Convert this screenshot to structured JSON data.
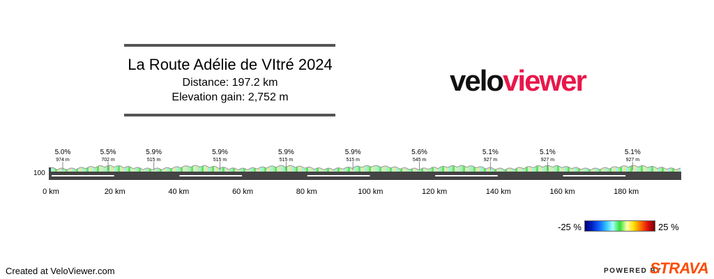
{
  "header": {
    "title": "La Route Adélie de VItré 2024",
    "distance": "Distance: 197.2 km",
    "elevation_gain": "Elevation gain: 2,752 m"
  },
  "logo": {
    "part1": "velo",
    "part2": "viewer"
  },
  "profile": {
    "y_label": "100",
    "total_km": 197.2,
    "x_ticks": [
      "0 km",
      "20 km",
      "40 km",
      "60 km",
      "80 km",
      "100 km",
      "120 km",
      "140 km",
      "160 km",
      "180 km"
    ],
    "climbs": [
      {
        "km": 3.7,
        "grade": "5.0%",
        "length": "974 m"
      },
      {
        "km": 17.9,
        "grade": "5.5%",
        "length": "702 m"
      },
      {
        "km": 32.2,
        "grade": "5.9%",
        "length": "515 m"
      },
      {
        "km": 52.9,
        "grade": "5.9%",
        "length": "515 m"
      },
      {
        "km": 73.6,
        "grade": "5.9%",
        "length": "515 m"
      },
      {
        "km": 94.5,
        "grade": "5.9%",
        "length": "515 m"
      },
      {
        "km": 115.3,
        "grade": "5.6%",
        "length": "545 m"
      },
      {
        "km": 137.5,
        "grade": "5.1%",
        "length": "927 m"
      },
      {
        "km": 155.4,
        "grade": "5.1%",
        "length": "927 m"
      },
      {
        "km": 182.0,
        "grade": "5.1%",
        "length": "927 m"
      }
    ]
  },
  "legend": {
    "min": "-25 %",
    "max": "25 %"
  },
  "footer": {
    "created": "Created at VeloViewer.com",
    "powered": "POWERED BY",
    "strava": "STRAVA"
  },
  "colors": {
    "accent": "#e8174b",
    "strava": "#fc4c02",
    "bar": "#444444"
  }
}
